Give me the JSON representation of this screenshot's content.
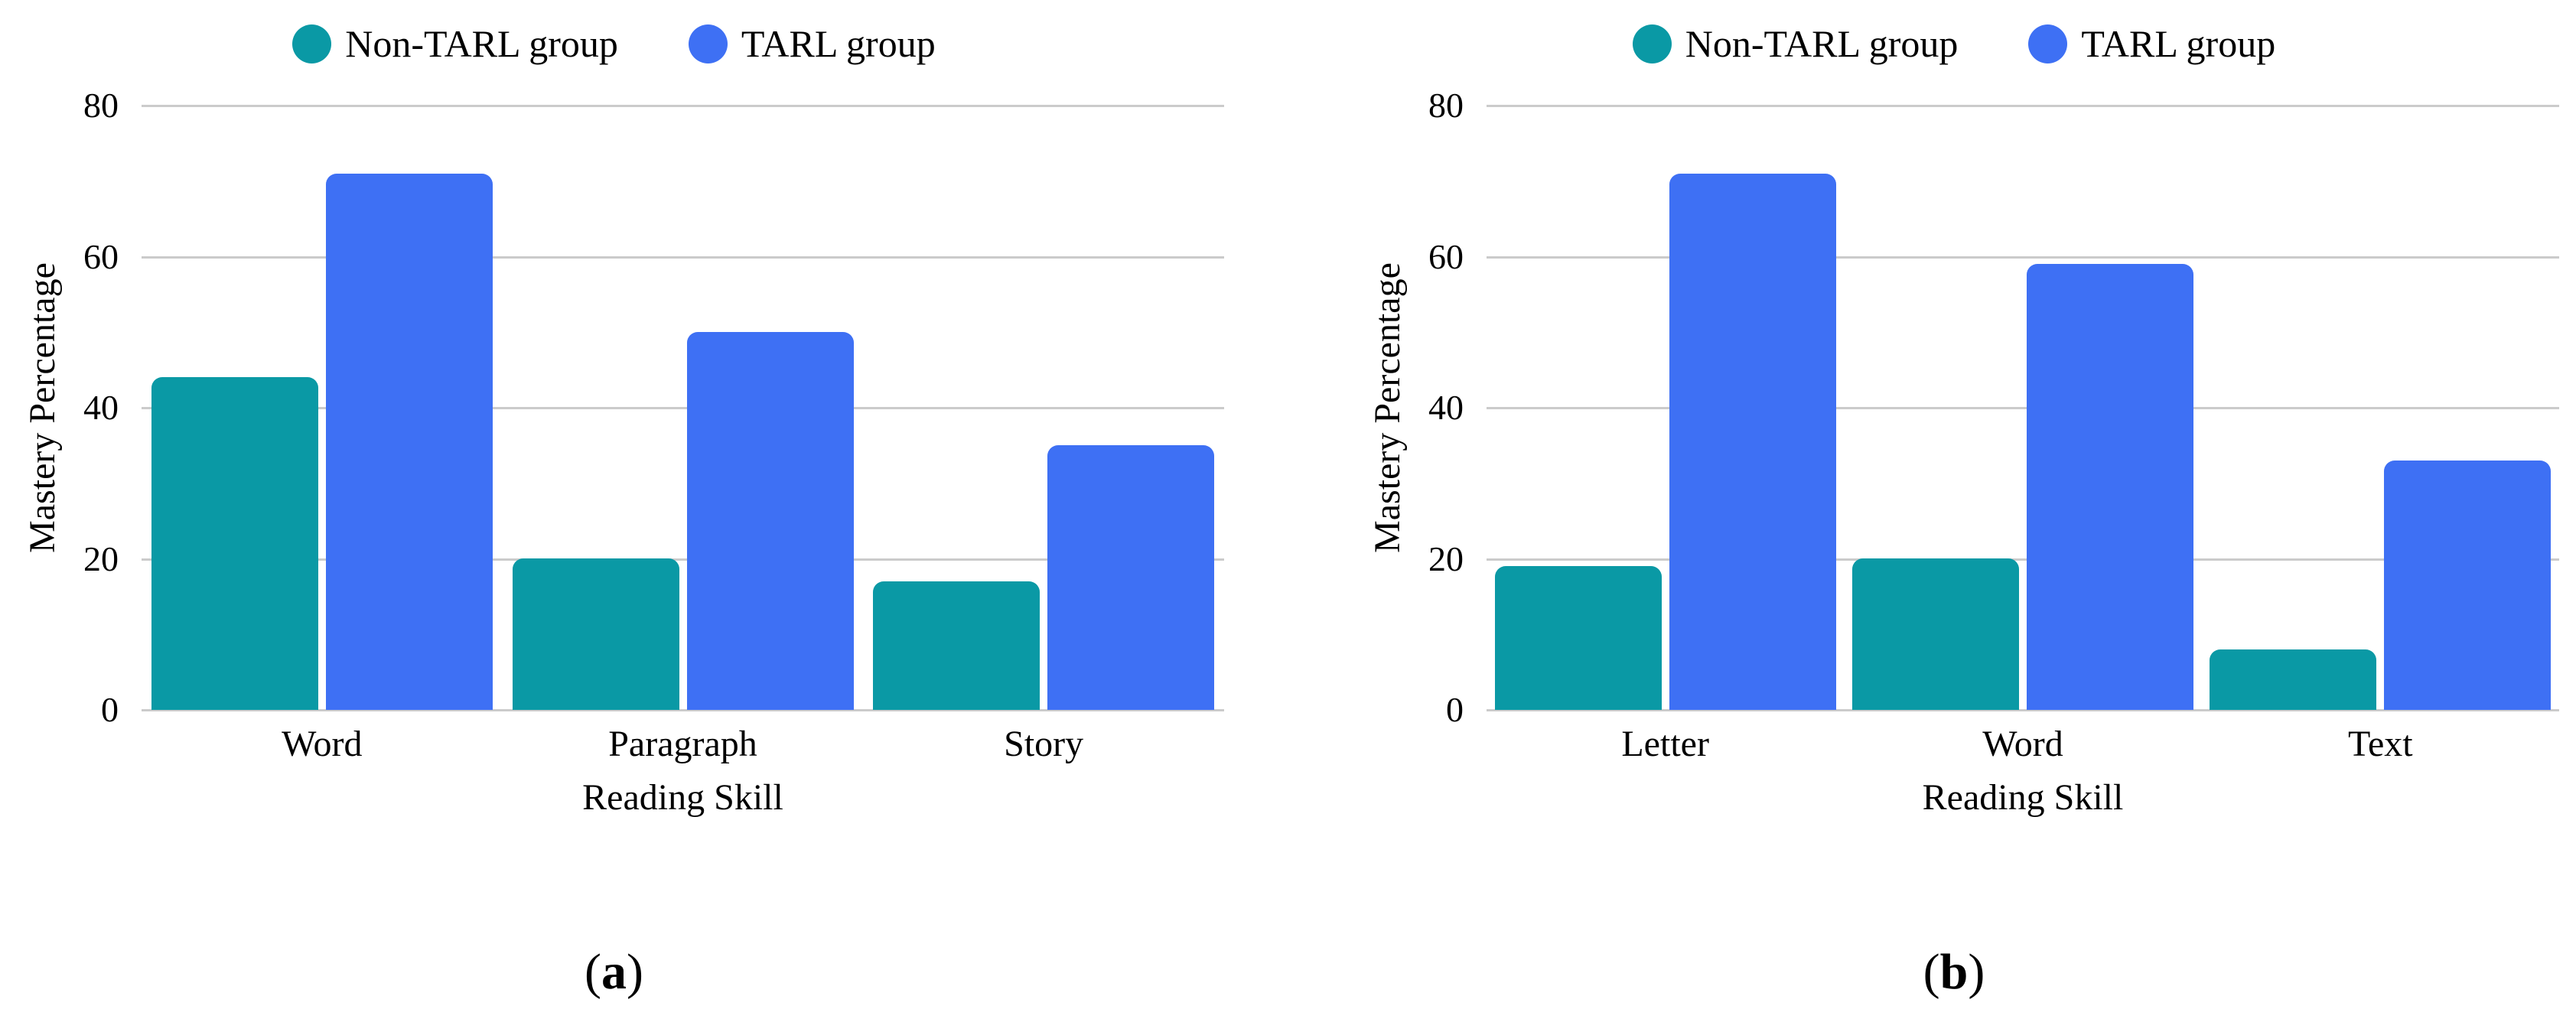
{
  "figure": {
    "background": "#ffffff",
    "text_color": "#000000",
    "gridline_color": "#cbcbcb",
    "series_colors": {
      "non_tarl_group": "#0a99a5",
      "tarl_group": "#3e70f4"
    }
  },
  "chart_data": [
    {
      "type": "bar",
      "panel_caption": "(a)",
      "categories": [
        "Word",
        "Paragraph",
        "Story"
      ],
      "series": [
        {
          "name": "Non-TARL group",
          "color": "#0a99a5",
          "values": [
            44,
            20,
            17
          ]
        },
        {
          "name": "TARL group",
          "color": "#3e70f4",
          "values": [
            71,
            50,
            35
          ]
        }
      ],
      "xlabel": "Reading Skill",
      "ylabel": "Mastery Percentage",
      "ylim": [
        0,
        80
      ],
      "yticks": [
        0,
        20,
        40,
        60,
        80
      ],
      "grid": true,
      "legend_position": "top"
    },
    {
      "type": "bar",
      "panel_caption": "(b)",
      "categories": [
        "Letter",
        "Word",
        "Text"
      ],
      "series": [
        {
          "name": "Non-TARL group",
          "color": "#0a99a5",
          "values": [
            19,
            20,
            8
          ]
        },
        {
          "name": "TARL group",
          "color": "#3e70f4",
          "values": [
            71,
            59,
            33
          ]
        }
      ],
      "xlabel": "Reading Skill",
      "ylabel": "Mastery Percentage",
      "ylim": [
        0,
        80
      ],
      "yticks": [
        0,
        20,
        40,
        60,
        80
      ],
      "grid": true,
      "legend_position": "top"
    }
  ]
}
